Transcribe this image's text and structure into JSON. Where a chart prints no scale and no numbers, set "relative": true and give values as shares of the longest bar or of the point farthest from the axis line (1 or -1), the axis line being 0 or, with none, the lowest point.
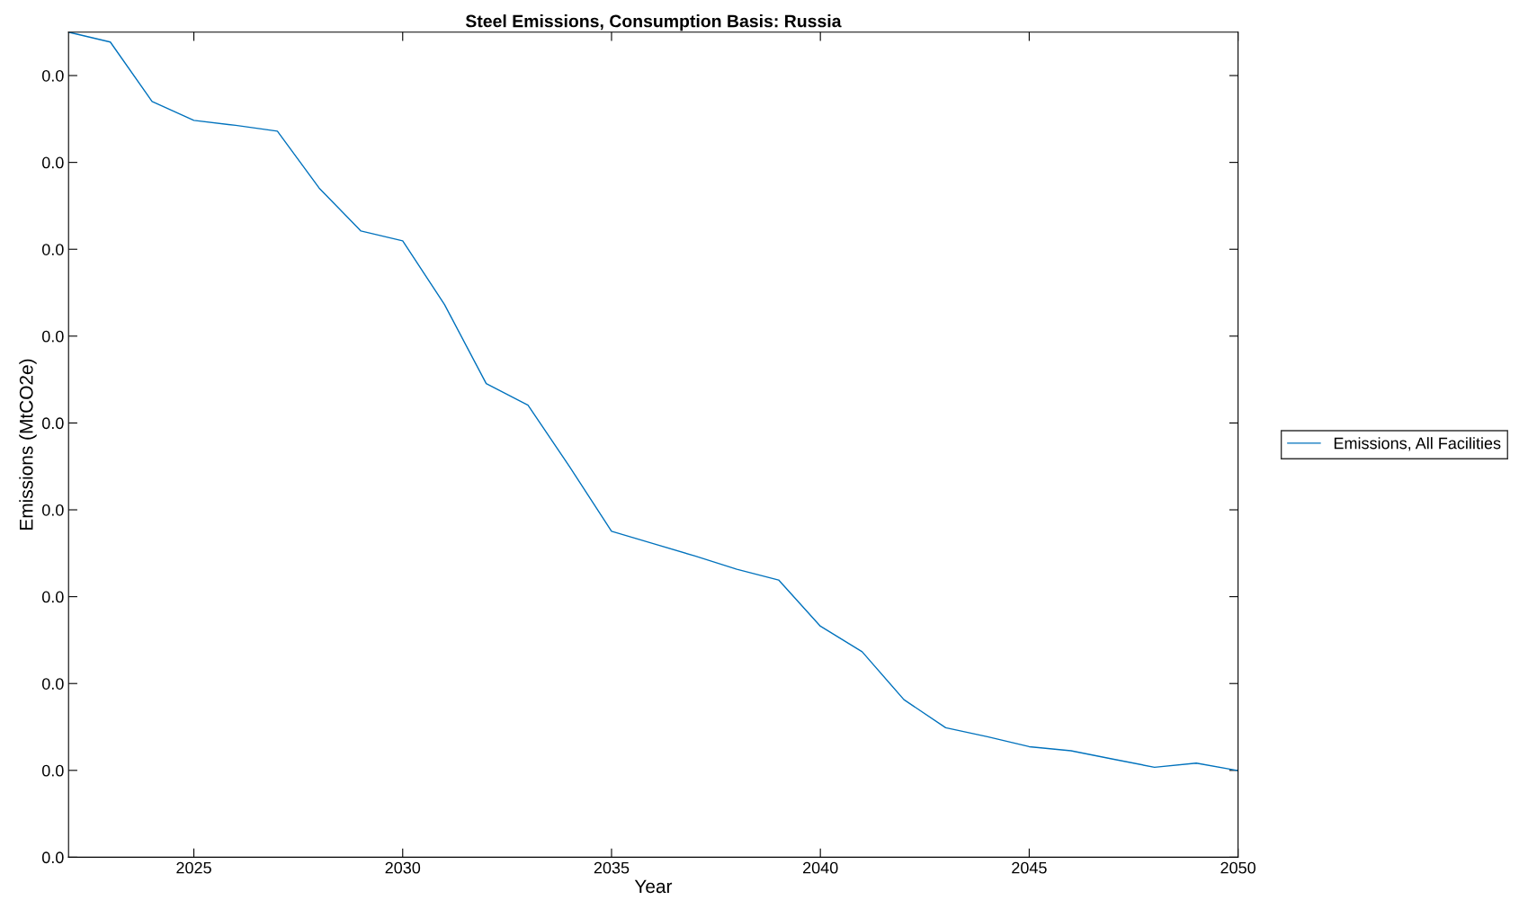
{
  "chart_data": {
    "type": "line",
    "title": "Steel Emissions, Consumption Basis: Russia",
    "xlabel": "Year",
    "ylabel": "Emissions (MtCO2e)",
    "relative": true,
    "x": [
      2022,
      2023,
      2024,
      2025,
      2026,
      2027,
      2028,
      2029,
      2030,
      2031,
      2032,
      2033,
      2034,
      2035,
      2036,
      2037,
      2038,
      2039,
      2040,
      2041,
      2042,
      2043,
      2044,
      2045,
      2046,
      2047,
      2048,
      2049,
      2050
    ],
    "xlim": [
      2022,
      2050
    ],
    "xticks": [
      2025,
      2030,
      2035,
      2040,
      2045,
      2050
    ],
    "annotations": [
      "0.0",
      "0.0",
      "0.0",
      "0.0",
      "0.0",
      "0.0",
      "0.0",
      "0.0",
      "0.0",
      "0.0"
    ],
    "series": [
      {
        "name": "Emissions, All Facilities",
        "color": "#0072bd",
        "values": [
          1.0,
          0.988,
          0.916,
          0.893,
          0.887,
          0.88,
          0.811,
          0.759,
          0.747,
          0.67,
          0.574,
          0.548,
          0.473,
          0.395,
          0.38,
          0.365,
          0.349,
          0.336,
          0.28,
          0.249,
          0.191,
          0.157,
          0.146,
          0.134,
          0.129,
          0.119,
          0.109,
          0.114,
          0.105
        ]
      }
    ],
    "legend": "right",
    "grid": false,
    "line_style": "solid",
    "marker": "none"
  }
}
